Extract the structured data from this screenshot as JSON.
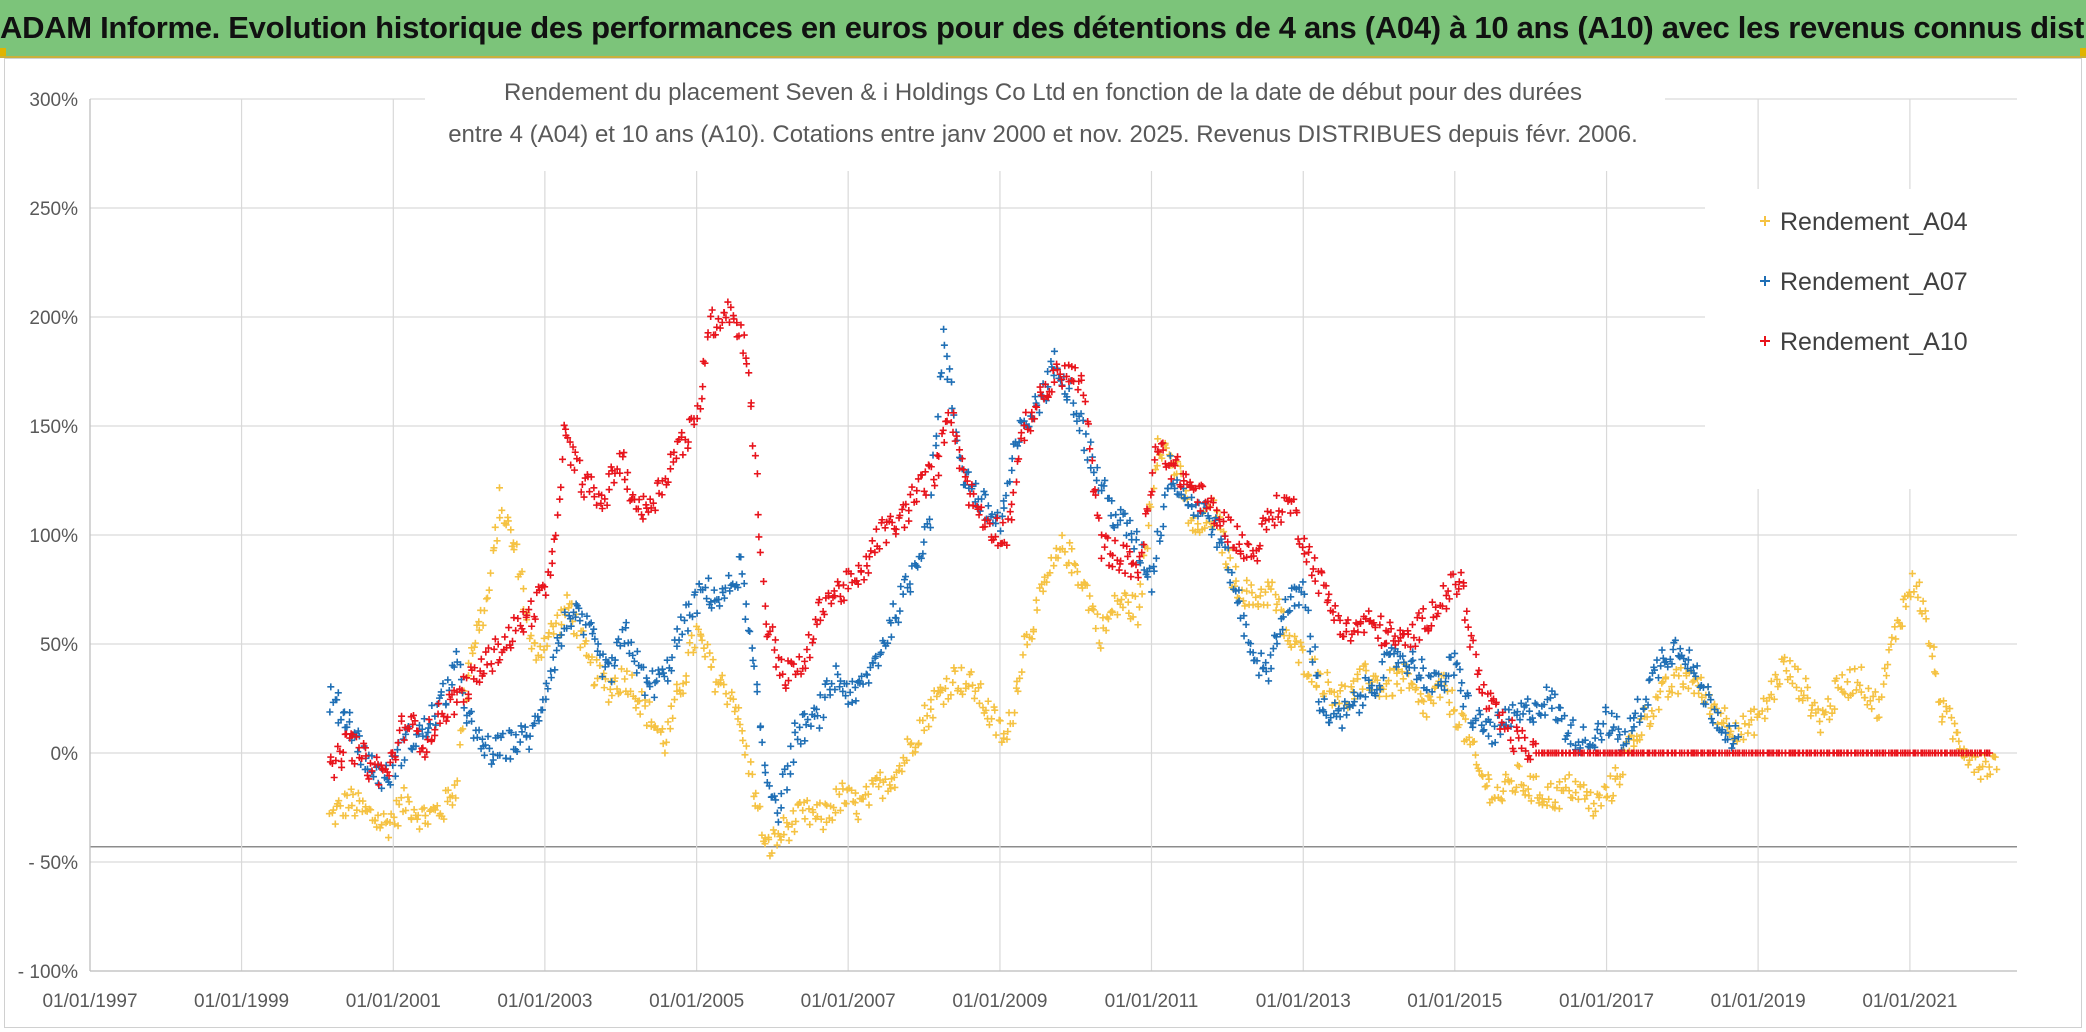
{
  "header": {
    "title": "ADAM Informe. Evolution historique des performances en euros pour des détentions de 4 ans (A04) à 10 ans (A10) avec les revenus connus distribués"
  },
  "chart_data": {
    "type": "scatter",
    "title_line1": "Rendement du placement Seven & i Holdings Co Ltd en fonction de la date de début pour des durées",
    "title_line2": "entre 4 (A04) et 10 ans (A10). Cotations entre janv 2000 et nov. 2025. Revenus DISTRIBUES depuis févr. 2006.",
    "xlabel": "",
    "ylabel": "",
    "x_ticks": [
      "01/01/1997",
      "01/01/1999",
      "01/01/2001",
      "01/01/2003",
      "01/01/2005",
      "01/01/2007",
      "01/01/2009",
      "01/01/2011",
      "01/01/2013",
      "01/01/2015",
      "01/01/2017",
      "01/01/2019",
      "01/01/2021"
    ],
    "xlim": [
      "1997-01-01",
      "2022-06-01"
    ],
    "y_ticks": [
      "300%",
      "250%",
      "200%",
      "150%",
      "100%",
      "50%",
      "0%",
      "- 50%",
      "- 100%"
    ],
    "ylim": [
      -100,
      300
    ],
    "grid": true,
    "legend_position": "top-right",
    "series": [
      {
        "name": "Rendement_A04",
        "color": "#f5c242",
        "points": [
          [
            "2000-03-01",
            -30
          ],
          [
            "2000-06-01",
            -22
          ],
          [
            "2000-09-01",
            -28
          ],
          [
            "2000-12-01",
            -33
          ],
          [
            "2001-03-01",
            -22
          ],
          [
            "2001-06-01",
            -30
          ],
          [
            "2001-09-01",
            -25
          ],
          [
            "2001-11-01",
            -15
          ],
          [
            "2002-01-01",
            45
          ],
          [
            "2002-04-01",
            70
          ],
          [
            "2002-06-01",
            115
          ],
          [
            "2002-09-01",
            85
          ],
          [
            "2002-11-01",
            45
          ],
          [
            "2003-02-01",
            55
          ],
          [
            "2003-05-01",
            68
          ],
          [
            "2003-08-01",
            40
          ],
          [
            "2003-11-01",
            30
          ],
          [
            "2004-02-01",
            35
          ],
          [
            "2004-05-01",
            20
          ],
          [
            "2004-08-01",
            5
          ],
          [
            "2004-11-01",
            35
          ],
          [
            "2005-01-01",
            55
          ],
          [
            "2005-04-01",
            35
          ],
          [
            "2005-07-01",
            25
          ],
          [
            "2005-10-01",
            -15
          ],
          [
            "2005-12-01",
            -45
          ],
          [
            "2006-03-01",
            -35
          ],
          [
            "2006-06-01",
            -28
          ],
          [
            "2006-09-01",
            -30
          ],
          [
            "2006-12-01",
            -20
          ],
          [
            "2007-03-01",
            -25
          ],
          [
            "2007-06-01",
            -15
          ],
          [
            "2007-09-01",
            -8
          ],
          [
            "2007-12-01",
            10
          ],
          [
            "2008-03-01",
            25
          ],
          [
            "2008-06-01",
            35
          ],
          [
            "2008-09-01",
            30
          ],
          [
            "2008-12-01",
            15
          ],
          [
            "2009-02-01",
            5
          ],
          [
            "2009-05-01",
            50
          ],
          [
            "2009-08-01",
            75
          ],
          [
            "2009-11-01",
            95
          ],
          [
            "2010-02-01",
            80
          ],
          [
            "2010-05-01",
            55
          ],
          [
            "2010-08-01",
            70
          ],
          [
            "2010-11-01",
            65
          ],
          [
            "2011-02-01",
            145
          ],
          [
            "2011-05-01",
            130
          ],
          [
            "2011-08-01",
            100
          ],
          [
            "2011-11-01",
            110
          ],
          [
            "2012-02-01",
            80
          ],
          [
            "2012-05-01",
            70
          ],
          [
            "2012-08-01",
            75
          ],
          [
            "2012-11-01",
            50
          ],
          [
            "2013-02-01",
            40
          ],
          [
            "2013-05-01",
            30
          ],
          [
            "2013-08-01",
            25
          ],
          [
            "2013-11-01",
            35
          ],
          [
            "2014-02-01",
            30
          ],
          [
            "2014-05-01",
            35
          ],
          [
            "2014-08-01",
            20
          ],
          [
            "2014-11-01",
            30
          ],
          [
            "2015-02-01",
            15
          ],
          [
            "2015-05-01",
            -10
          ],
          [
            "2015-08-01",
            -20
          ],
          [
            "2015-11-01",
            -12
          ],
          [
            "2016-02-01",
            -18
          ],
          [
            "2016-05-01",
            -20
          ],
          [
            "2016-08-01",
            -15
          ],
          [
            "2016-11-01",
            -25
          ],
          [
            "2017-02-01",
            -15
          ],
          [
            "2017-05-01",
            5
          ],
          [
            "2017-08-01",
            20
          ],
          [
            "2017-11-01",
            30
          ],
          [
            "2018-02-01",
            35
          ],
          [
            "2018-05-01",
            25
          ],
          [
            "2018-08-01",
            15
          ],
          [
            "2018-11-01",
            10
          ],
          [
            "2019-02-01",
            20
          ],
          [
            "2019-05-01",
            40
          ],
          [
            "2019-08-01",
            30
          ],
          [
            "2019-11-01",
            15
          ],
          [
            "2020-02-01",
            30
          ],
          [
            "2020-05-01",
            35
          ],
          [
            "2020-08-01",
            20
          ],
          [
            "2020-11-01",
            60
          ],
          [
            "2021-02-01",
            80
          ],
          [
            "2021-04-01",
            55
          ],
          [
            "2021-06-01",
            20
          ],
          [
            "2021-09-01",
            5
          ],
          [
            "2021-12-01",
            -5
          ],
          [
            "2022-03-01",
            -5
          ]
        ]
      },
      {
        "name": "Rendement_A07",
        "color": "#1f6fb5",
        "points": [
          [
            "2000-03-01",
            25
          ],
          [
            "2000-06-01",
            15
          ],
          [
            "2000-09-01",
            -5
          ],
          [
            "2000-12-01",
            -12
          ],
          [
            "2001-03-01",
            5
          ],
          [
            "2001-06-01",
            10
          ],
          [
            "2001-09-01",
            25
          ],
          [
            "2001-11-01",
            40
          ],
          [
            "2002-02-01",
            5
          ],
          [
            "2002-05-01",
            0
          ],
          [
            "2002-08-01",
            5
          ],
          [
            "2002-11-01",
            8
          ],
          [
            "2003-02-01",
            40
          ],
          [
            "2003-05-01",
            65
          ],
          [
            "2003-08-01",
            55
          ],
          [
            "2003-11-01",
            35
          ],
          [
            "2004-02-01",
            55
          ],
          [
            "2004-05-01",
            30
          ],
          [
            "2004-08-01",
            35
          ],
          [
            "2004-11-01",
            60
          ],
          [
            "2005-02-01",
            75
          ],
          [
            "2005-05-01",
            70
          ],
          [
            "2005-08-01",
            85
          ],
          [
            "2005-10-01",
            40
          ],
          [
            "2005-12-01",
            -10
          ],
          [
            "2006-02-01",
            -25
          ],
          [
            "2006-05-01",
            10
          ],
          [
            "2006-08-01",
            15
          ],
          [
            "2006-11-01",
            35
          ],
          [
            "2007-02-01",
            25
          ],
          [
            "2007-05-01",
            40
          ],
          [
            "2007-08-01",
            60
          ],
          [
            "2007-11-01",
            80
          ],
          [
            "2008-02-01",
            110
          ],
          [
            "2008-04-01",
            190
          ],
          [
            "2008-07-01",
            130
          ],
          [
            "2008-10-01",
            115
          ],
          [
            "2009-01-01",
            105
          ],
          [
            "2009-04-01",
            145
          ],
          [
            "2009-07-01",
            160
          ],
          [
            "2009-10-01",
            180
          ],
          [
            "2010-01-01",
            160
          ],
          [
            "2010-04-01",
            130
          ],
          [
            "2010-07-01",
            110
          ],
          [
            "2010-10-01",
            100
          ],
          [
            "2011-01-01",
            80
          ],
          [
            "2011-04-01",
            130
          ],
          [
            "2011-07-01",
            115
          ],
          [
            "2011-10-01",
            110
          ],
          [
            "2012-01-01",
            90
          ],
          [
            "2012-04-01",
            55
          ],
          [
            "2012-07-01",
            35
          ],
          [
            "2012-10-01",
            65
          ],
          [
            "2013-01-01",
            75
          ],
          [
            "2013-04-01",
            20
          ],
          [
            "2013-07-01",
            15
          ],
          [
            "2013-10-01",
            25
          ],
          [
            "2014-01-01",
            35
          ],
          [
            "2014-04-01",
            45
          ],
          [
            "2014-07-01",
            40
          ],
          [
            "2014-10-01",
            30
          ],
          [
            "2015-01-01",
            40
          ],
          [
            "2015-04-01",
            15
          ],
          [
            "2015-07-01",
            10
          ],
          [
            "2015-10-01",
            15
          ],
          [
            "2016-01-01",
            20
          ],
          [
            "2016-04-01",
            25
          ],
          [
            "2016-07-01",
            10
          ],
          [
            "2016-10-01",
            5
          ],
          [
            "2017-01-01",
            15
          ],
          [
            "2017-04-01",
            5
          ],
          [
            "2017-07-01",
            25
          ],
          [
            "2017-10-01",
            45
          ],
          [
            "2018-01-01",
            50
          ],
          [
            "2018-04-01",
            30
          ],
          [
            "2018-07-01",
            15
          ],
          [
            "2018-10-01",
            5
          ]
        ]
      },
      {
        "name": "Rendement_A10",
        "color": "#e8141c",
        "points": [
          [
            "2000-03-01",
            -10
          ],
          [
            "2000-06-01",
            5
          ],
          [
            "2000-09-01",
            -5
          ],
          [
            "2000-12-01",
            -10
          ],
          [
            "2001-03-01",
            15
          ],
          [
            "2001-06-01",
            5
          ],
          [
            "2001-09-01",
            20
          ],
          [
            "2001-11-01",
            25
          ],
          [
            "2002-02-01",
            35
          ],
          [
            "2002-05-01",
            45
          ],
          [
            "2002-08-01",
            55
          ],
          [
            "2002-11-01",
            65
          ],
          [
            "2003-02-01",
            80
          ],
          [
            "2003-04-01",
            145
          ],
          [
            "2003-07-01",
            125
          ],
          [
            "2003-10-01",
            115
          ],
          [
            "2004-01-01",
            135
          ],
          [
            "2004-04-01",
            110
          ],
          [
            "2004-07-01",
            120
          ],
          [
            "2004-10-01",
            140
          ],
          [
            "2005-01-01",
            150
          ],
          [
            "2005-03-01",
            195
          ],
          [
            "2005-06-01",
            205
          ],
          [
            "2005-09-01",
            185
          ],
          [
            "2005-12-01",
            60
          ],
          [
            "2006-03-01",
            35
          ],
          [
            "2006-06-01",
            40
          ],
          [
            "2006-09-01",
            70
          ],
          [
            "2006-12-01",
            75
          ],
          [
            "2007-03-01",
            80
          ],
          [
            "2007-06-01",
            100
          ],
          [
            "2007-09-01",
            105
          ],
          [
            "2007-12-01",
            120
          ],
          [
            "2008-03-01",
            130
          ],
          [
            "2008-05-01",
            160
          ],
          [
            "2008-08-01",
            120
          ],
          [
            "2008-11-01",
            105
          ],
          [
            "2009-02-01",
            100
          ],
          [
            "2009-05-01",
            150
          ],
          [
            "2009-08-01",
            165
          ],
          [
            "2009-11-01",
            175
          ],
          [
            "2010-02-01",
            170
          ],
          [
            "2010-05-01",
            95
          ],
          [
            "2010-08-01",
            90
          ],
          [
            "2010-11-01",
            85
          ],
          [
            "2011-02-01",
            140
          ],
          [
            "2011-05-01",
            130
          ],
          [
            "2011-08-01",
            120
          ],
          [
            "2011-11-01",
            110
          ],
          [
            "2012-02-01",
            100
          ],
          [
            "2012-05-01",
            90
          ],
          [
            "2012-08-01",
            110
          ],
          [
            "2012-11-01",
            115
          ],
          [
            "2013-02-01",
            90
          ],
          [
            "2013-05-01",
            70
          ],
          [
            "2013-08-01",
            55
          ],
          [
            "2013-11-01",
            60
          ],
          [
            "2014-02-01",
            55
          ],
          [
            "2014-05-01",
            50
          ],
          [
            "2014-08-01",
            60
          ],
          [
            "2014-11-01",
            70
          ],
          [
            "2015-02-01",
            80
          ],
          [
            "2015-05-01",
            30
          ],
          [
            "2015-08-01",
            15
          ],
          [
            "2015-11-01",
            5
          ],
          [
            "2016-02-01",
            0
          ],
          [
            "2016-08-01",
            0
          ],
          [
            "2017-02-01",
            0
          ],
          [
            "2017-08-01",
            0
          ],
          [
            "2018-02-01",
            0
          ],
          [
            "2018-08-01",
            0
          ],
          [
            "2019-02-01",
            0
          ],
          [
            "2019-08-01",
            0
          ],
          [
            "2020-02-01",
            0
          ],
          [
            "2020-08-01",
            0
          ],
          [
            "2021-02-01",
            0
          ],
          [
            "2021-08-01",
            0
          ],
          [
            "2022-02-01",
            0
          ]
        ]
      }
    ]
  }
}
